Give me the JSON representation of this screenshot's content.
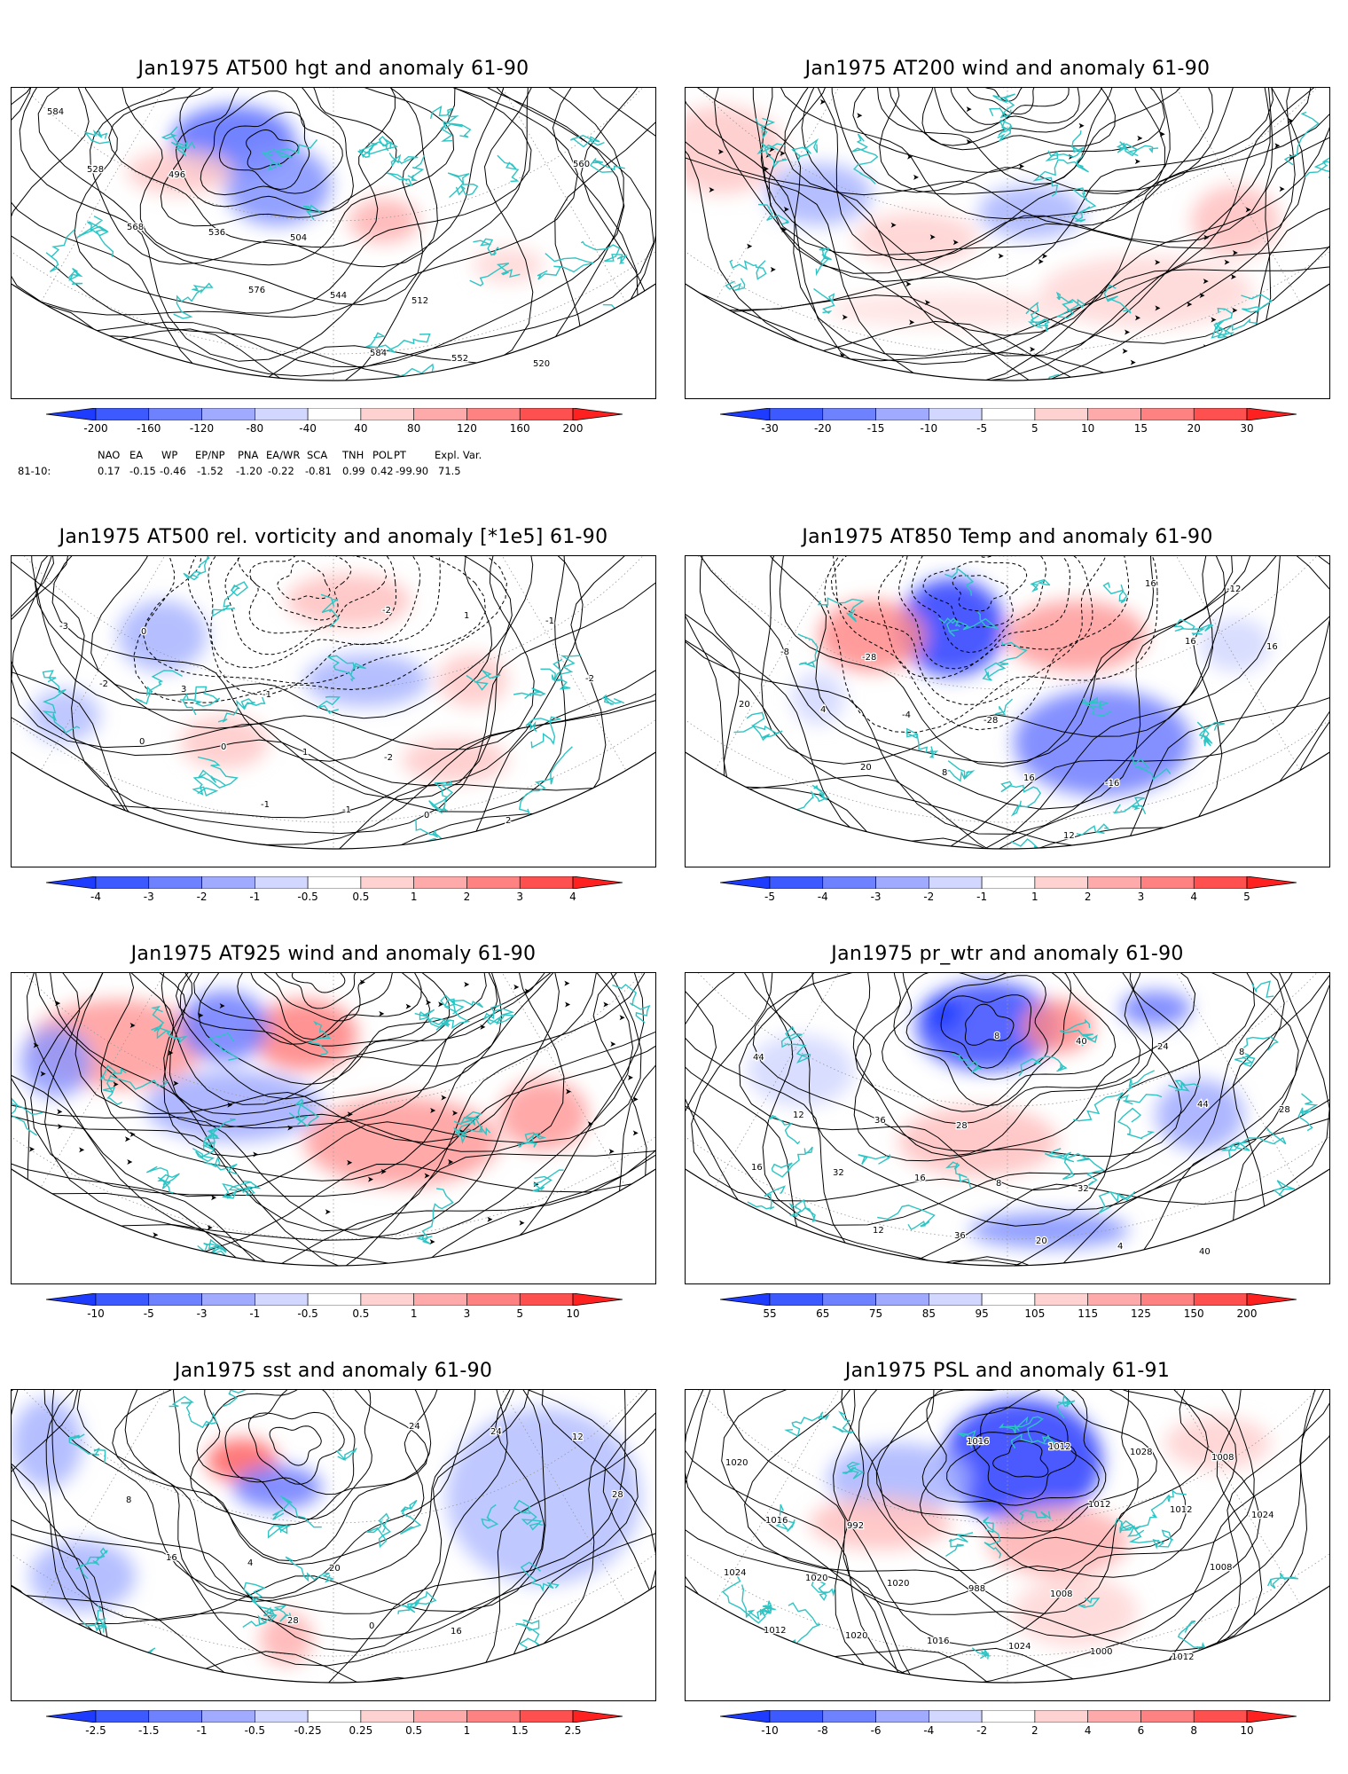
{
  "panels": [
    {
      "title": "Jan1975 AT500 hgt and anomaly 61-90",
      "contour_labels": [
        "584",
        "496",
        "504",
        "512",
        "520",
        "528",
        "536",
        "544",
        "552",
        "560",
        "568",
        "576",
        "584"
      ],
      "colorbar_ticks": [
        "-200",
        "-160",
        "-120",
        "-80",
        "-40",
        "40",
        "80",
        "120",
        "160",
        "200"
      ],
      "colorbar_colors": [
        "#1e3cff",
        "#3c5aff",
        "#6e82ff",
        "#a0aaff",
        "#d2d7ff",
        "#ffffff",
        "#ffd2d2",
        "#ffaaaa",
        "#ff8282",
        "#ff5050",
        "#ff2020"
      ],
      "teleconnection": {
        "headers": [
          "NAO",
          "EA",
          "WP",
          "EP/NP",
          "PNA",
          "EA/WR",
          "SCA",
          "TNH",
          "POL",
          "PT",
          "Expl. Var."
        ],
        "row_label": "81-10:",
        "values": [
          "0.17",
          "-0.15",
          "-0.46",
          "-1.52",
          "-1.20",
          "-0.22",
          "-0.81",
          "0.99",
          "0.42",
          "-99.90",
          "71.5"
        ]
      }
    },
    {
      "title": "Jan1975 AT200 wind and anomaly 61-90",
      "contour_labels": [],
      "colorbar_ticks": [
        "-30",
        "-20",
        "-15",
        "-10",
        "-5",
        "5",
        "10",
        "15",
        "20",
        "30"
      ],
      "colorbar_colors": [
        "#1e3cff",
        "#3c5aff",
        "#6e82ff",
        "#a0aaff",
        "#d2d7ff",
        "#ffffff",
        "#ffd2d2",
        "#ffaaaa",
        "#ff8282",
        "#ff5050",
        "#ff2020"
      ]
    },
    {
      "title": "Jan1975 AT500 rel. vorticity and anomaly [*1e5] 61-90",
      "contour_labels": [
        "0",
        "-1",
        "-2",
        "2",
        "-3",
        "3",
        "1",
        "0",
        "-1",
        "-2",
        "0",
        "-1",
        "1",
        "-2",
        "0",
        "-1",
        "-2"
      ],
      "colorbar_ticks": [
        "-4",
        "-3",
        "-2",
        "-1",
        "-0.5",
        "0.5",
        "1",
        "2",
        "3",
        "4"
      ],
      "colorbar_colors": [
        "#1e3cff",
        "#3c5aff",
        "#6e82ff",
        "#a0aaff",
        "#d2d7ff",
        "#ffffff",
        "#ffd2d2",
        "#ffaaaa",
        "#ff8282",
        "#ff5050",
        "#ff2020"
      ]
    },
    {
      "title": "Jan1975 AT850 Temp and anomaly 61-90",
      "contour_labels": [
        "-28",
        "-28",
        "-16",
        "-12",
        "-8",
        "-4",
        "16",
        "16",
        "16",
        "4",
        "8",
        "12",
        "16",
        "20",
        "20"
      ],
      "colorbar_ticks": [
        "-5",
        "-4",
        "-3",
        "-2",
        "-1",
        "1",
        "2",
        "3",
        "4",
        "5"
      ],
      "colorbar_colors": [
        "#1e3cff",
        "#3c5aff",
        "#6e82ff",
        "#a0aaff",
        "#d2d7ff",
        "#ffffff",
        "#ffd2d2",
        "#ffaaaa",
        "#ff8282",
        "#ff5050",
        "#ff2020"
      ]
    },
    {
      "title": "Jan1975 AT925 wind and anomaly 61-90",
      "contour_labels": [],
      "colorbar_ticks": [
        "-10",
        "-5",
        "-3",
        "-1",
        "-0.5",
        "0.5",
        "1",
        "3",
        "5",
        "10"
      ],
      "colorbar_colors": [
        "#1e3cff",
        "#3c5aff",
        "#6e82ff",
        "#a0aaff",
        "#d2d7ff",
        "#ffffff",
        "#ffd2d2",
        "#ffaaaa",
        "#ff8282",
        "#ff5050",
        "#ff2020"
      ]
    },
    {
      "title": "Jan1975 pr_wtr and anomaly 61-90",
      "contour_labels": [
        "28",
        "32",
        "40",
        "44",
        "36",
        "8",
        "4",
        "8",
        "12",
        "16",
        "20",
        "24",
        "28",
        "32",
        "36",
        "40",
        "44",
        "16",
        "12",
        "8"
      ],
      "colorbar_ticks": [
        "55",
        "65",
        "75",
        "85",
        "95",
        "105",
        "115",
        "125",
        "150",
        "200"
      ],
      "colorbar_colors": [
        "#1e3cff",
        "#3c5aff",
        "#6e82ff",
        "#a0aaff",
        "#d2d7ff",
        "#ffffff",
        "#ffd2d2",
        "#ffaaaa",
        "#ff8282",
        "#ff5050",
        "#ff2020"
      ]
    },
    {
      "title": "Jan1975 sst and anomaly 61-90",
      "contour_labels": [
        "20",
        "16",
        "12",
        "8",
        "4",
        "0",
        "24",
        "28",
        "16",
        "28",
        "24"
      ],
      "colorbar_ticks": [
        "-2.5",
        "-1.5",
        "-1",
        "-0.5",
        "-0.25",
        "0.25",
        "0.5",
        "1",
        "1.5",
        "2.5"
      ],
      "colorbar_colors": [
        "#1e3cff",
        "#3c5aff",
        "#6e82ff",
        "#a0aaff",
        "#d2d7ff",
        "#ffffff",
        "#ffd2d2",
        "#ffaaaa",
        "#ff8282",
        "#ff5050",
        "#ff2020"
      ]
    },
    {
      "title": "Jan1975 PSL and anomaly 61-91",
      "contour_labels": [
        "1008",
        "1012",
        "1020",
        "992",
        "988",
        "1000",
        "1008",
        "1016",
        "1020",
        "1024",
        "1028",
        "1024",
        "1020",
        "1016",
        "1012",
        "1012",
        "1024",
        "1020",
        "1016",
        "1012",
        "1008",
        "1012"
      ],
      "colorbar_ticks": [
        "-10",
        "-8",
        "-6",
        "-4",
        "-2",
        "2",
        "4",
        "6",
        "8",
        "10"
      ],
      "colorbar_colors": [
        "#1e3cff",
        "#3c5aff",
        "#6e82ff",
        "#a0aaff",
        "#d2d7ff",
        "#ffffff",
        "#ffd2d2",
        "#ffaaaa",
        "#ff8282",
        "#ff5050",
        "#ff2020"
      ]
    }
  ],
  "colors": {
    "coastline": "#2ec4c4",
    "contour": "#000000",
    "grid": "#9a9a9a"
  }
}
